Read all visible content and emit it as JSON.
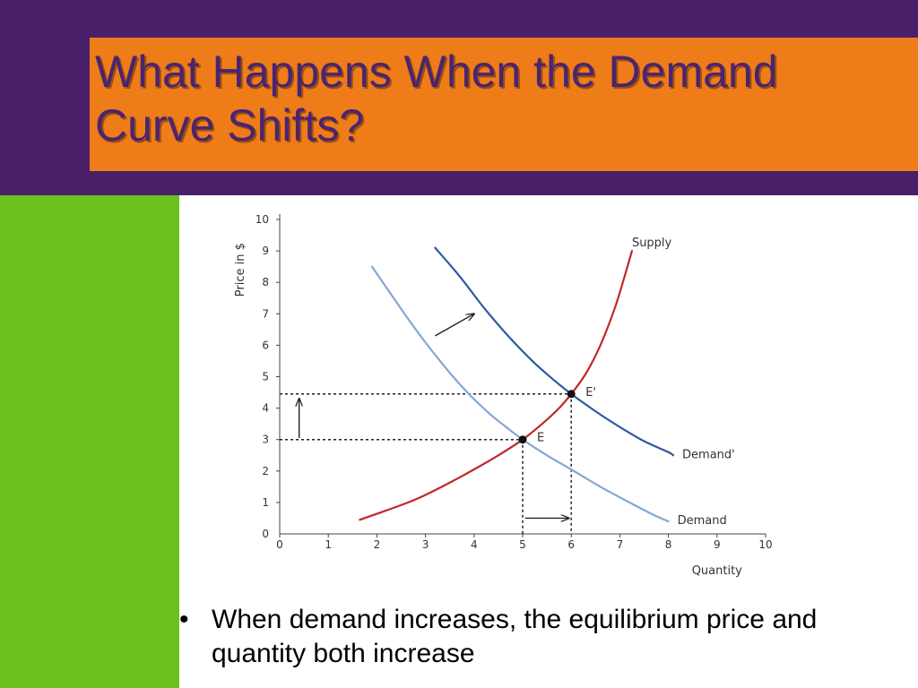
{
  "slide": {
    "title": "What Happens When the Demand Curve Shifts?",
    "bullet_marker": "•",
    "bullet": "When demand increases, the equilibrium price and quantity both increase"
  },
  "colors": {
    "header_band": "#4a1f69",
    "title_box": "#ee7c18",
    "title_text": "#4b2471",
    "left_stripe": "#6bc21d",
    "supply": "#c0282d",
    "demand": "#86a7d4",
    "demand_prime": "#2d5aa0"
  },
  "chart_data": {
    "type": "line",
    "xlabel": "Quantity",
    "ylabel": "Price in $",
    "xlim": [
      0,
      10
    ],
    "ylim": [
      0,
      10
    ],
    "xticks": [
      0,
      1,
      2,
      3,
      4,
      5,
      6,
      7,
      8,
      9,
      10
    ],
    "yticks": [
      0,
      1,
      2,
      3,
      4,
      5,
      6,
      7,
      8,
      9,
      10
    ],
    "series": [
      {
        "name": "Supply",
        "color": "#c0282d",
        "points": [
          [
            1.65,
            0.45
          ],
          [
            2.2,
            0.75
          ],
          [
            2.8,
            1.1
          ],
          [
            3.4,
            1.55
          ],
          [
            4.0,
            2.05
          ],
          [
            4.5,
            2.5
          ],
          [
            5.0,
            3.0
          ],
          [
            5.4,
            3.5
          ],
          [
            5.75,
            4.0
          ],
          [
            6.0,
            4.45
          ],
          [
            6.3,
            5.1
          ],
          [
            6.6,
            6.0
          ],
          [
            6.9,
            7.2
          ],
          [
            7.1,
            8.2
          ],
          [
            7.25,
            9.0
          ]
        ]
      },
      {
        "name": "Demand",
        "color": "#86a7d4",
        "points": [
          [
            1.9,
            8.5
          ],
          [
            2.3,
            7.6
          ],
          [
            2.8,
            6.5
          ],
          [
            3.3,
            5.5
          ],
          [
            3.8,
            4.6
          ],
          [
            4.3,
            3.85
          ],
          [
            4.7,
            3.35
          ],
          [
            5.0,
            3.0
          ],
          [
            5.5,
            2.5
          ],
          [
            6.0,
            2.05
          ],
          [
            6.6,
            1.5
          ],
          [
            7.2,
            1.0
          ],
          [
            7.7,
            0.6
          ],
          [
            8.0,
            0.4
          ]
        ]
      },
      {
        "name": "Demand'",
        "color": "#2d5aa0",
        "points": [
          [
            3.2,
            9.1
          ],
          [
            3.7,
            8.2
          ],
          [
            4.2,
            7.2
          ],
          [
            4.7,
            6.3
          ],
          [
            5.2,
            5.5
          ],
          [
            5.6,
            4.95
          ],
          [
            6.0,
            4.45
          ],
          [
            6.5,
            3.9
          ],
          [
            7.0,
            3.4
          ],
          [
            7.5,
            2.95
          ],
          [
            8.0,
            2.6
          ],
          [
            8.1,
            2.5
          ]
        ]
      }
    ],
    "equilibria": [
      {
        "label": "E",
        "x": 5,
        "y": 3
      },
      {
        "label": "E'",
        "x": 6,
        "y": 4.45
      }
    ],
    "shift_arrows": [
      {
        "from": [
          3.2,
          6.3
        ],
        "to": [
          4.0,
          7.0
        ]
      },
      {
        "from": [
          0.4,
          3.05
        ],
        "to": [
          0.4,
          4.3
        ]
      },
      {
        "from": [
          5.05,
          0.5
        ],
        "to": [
          5.95,
          0.5
        ]
      }
    ]
  }
}
